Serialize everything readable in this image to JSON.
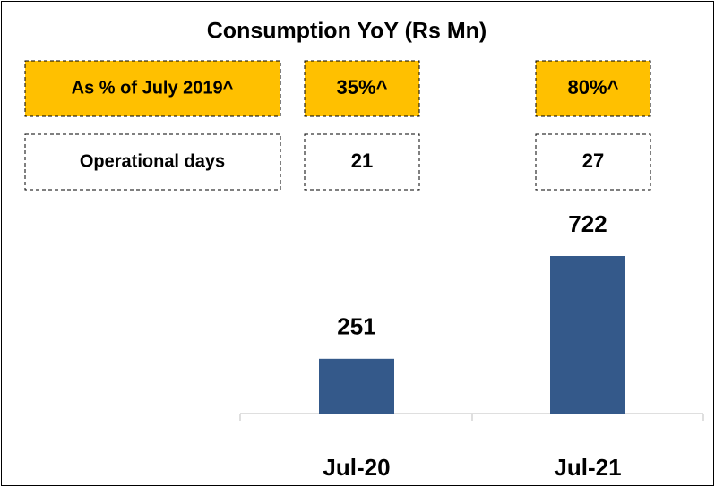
{
  "chart_data": {
    "type": "bar",
    "title": "Consumption YoY (Rs Mn)",
    "categories": [
      "Jul-20",
      "Jul-21"
    ],
    "values": [
      251,
      722
    ],
    "color": "#34598a",
    "table": {
      "rows": [
        {
          "label": "As % of July 2019^",
          "values": [
            "35%^",
            "80%^"
          ],
          "color": "#ffc000"
        },
        {
          "label": "Operational days",
          "values": [
            21,
            27
          ],
          "color": "#ffffff"
        }
      ]
    }
  }
}
